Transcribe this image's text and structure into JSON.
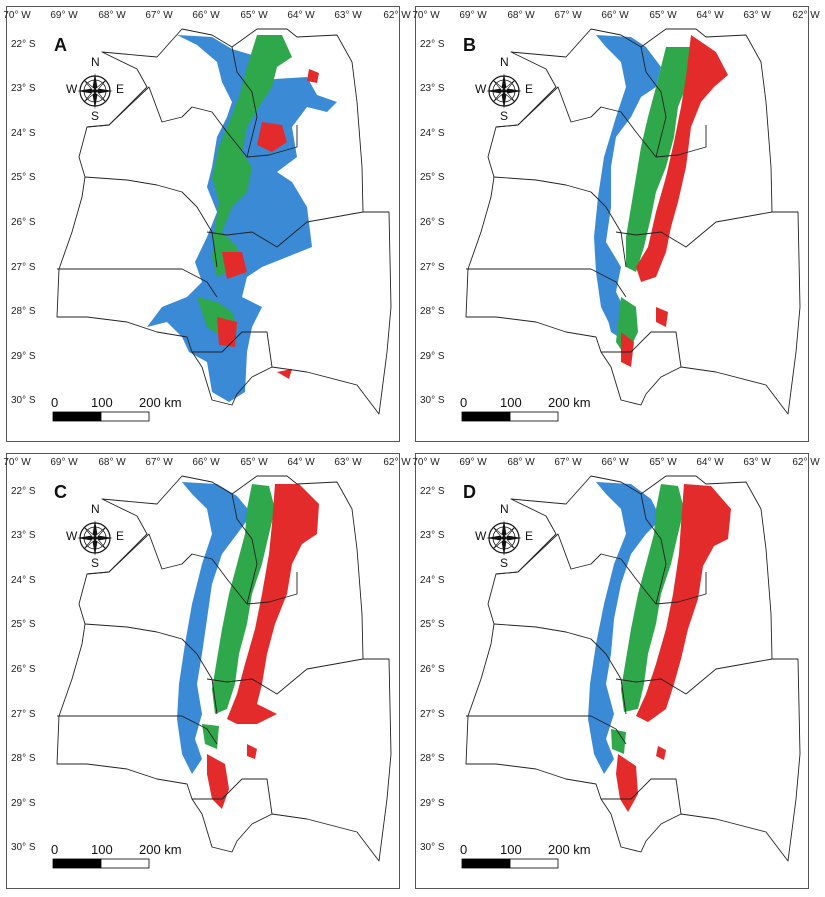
{
  "lon_labels": [
    "70° W",
    "69° W",
    "68° W",
    "67° W",
    "66° W",
    "65° W",
    "64° W",
    "63° W",
    "62° W"
  ],
  "lat_labels": [
    "22° S",
    "23° S",
    "24° S",
    "25° S",
    "26° S",
    "27° S",
    "28° S",
    "29° S",
    "30° S"
  ],
  "compass": {
    "n": "N",
    "s": "S",
    "e": "E",
    "w": "W"
  },
  "scale_bar": {
    "labels": [
      "0",
      "100",
      "200 km"
    ]
  },
  "colors": {
    "blue": "#3a8ad6",
    "green": "#2ea84a",
    "red": "#e32b2b",
    "outline": "#222222"
  },
  "panels": [
    {
      "letter": "A"
    },
    {
      "letter": "B"
    },
    {
      "letter": "C"
    },
    {
      "letter": "D"
    }
  ]
}
